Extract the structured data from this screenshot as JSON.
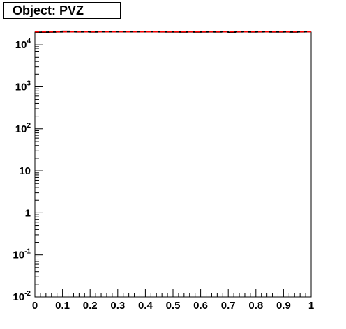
{
  "title": "Object: PVZ",
  "chart_data": {
    "type": "line",
    "title": "Object: PVZ",
    "xlabel": "",
    "ylabel": "",
    "xlim": [
      0,
      1
    ],
    "ylim": [
      0.01,
      20000
    ],
    "y_log_scale": true,
    "grid": false,
    "x_ticks": [
      {
        "v": 0,
        "label": "0"
      },
      {
        "v": 0.1,
        "label": "0.1"
      },
      {
        "v": 0.2,
        "label": "0.2"
      },
      {
        "v": 0.3,
        "label": "0.3"
      },
      {
        "v": 0.4,
        "label": "0.4"
      },
      {
        "v": 0.5,
        "label": "0.5"
      },
      {
        "v": 0.6,
        "label": "0.6"
      },
      {
        "v": 0.7,
        "label": "0.7"
      },
      {
        "v": 0.8,
        "label": "0.8"
      },
      {
        "v": 0.9,
        "label": "0.9"
      },
      {
        "v": 1,
        "label": "1"
      }
    ],
    "y_ticks": [
      {
        "v": 0.01,
        "base": "10",
        "exp": "-2"
      },
      {
        "v": 0.1,
        "base": "10",
        "exp": "-1"
      },
      {
        "v": 1,
        "base": "1",
        "exp": ""
      },
      {
        "v": 10,
        "base": "10",
        "exp": ""
      },
      {
        "v": 100,
        "base": "10",
        "exp": "2"
      },
      {
        "v": 1000,
        "base": "10",
        "exp": "3"
      },
      {
        "v": 10000,
        "base": "10",
        "exp": "4"
      }
    ],
    "series": [
      {
        "color": "#000000",
        "style": "solid",
        "x": [
          0,
          0.025,
          0.05,
          0.075,
          0.1,
          0.125,
          0.15,
          0.175,
          0.2,
          0.225,
          0.25,
          0.275,
          0.3,
          0.325,
          0.35,
          0.375,
          0.4,
          0.425,
          0.45,
          0.475,
          0.5,
          0.525,
          0.55,
          0.575,
          0.6,
          0.625,
          0.65,
          0.675,
          0.7,
          0.725,
          0.75,
          0.775,
          0.8,
          0.825,
          0.85,
          0.875,
          0.9,
          0.925,
          0.95,
          0.975
        ],
        "y": [
          19800,
          19900,
          20100,
          20300,
          20900,
          20500,
          20300,
          20400,
          20200,
          20600,
          20500,
          20400,
          20700,
          20600,
          20500,
          20700,
          20500,
          20400,
          20300,
          20200,
          20200,
          20100,
          20300,
          20100,
          20200,
          20300,
          20200,
          20400,
          19400,
          20300,
          20500,
          20200,
          20300,
          20400,
          20200,
          20200,
          20300,
          20100,
          20300,
          20400
        ]
      },
      {
        "color": "#ff0000",
        "style": "dashed",
        "x": [
          0,
          0.025,
          0.05,
          0.075,
          0.1,
          0.125,
          0.15,
          0.175,
          0.2,
          0.225,
          0.25,
          0.275,
          0.3,
          0.325,
          0.35,
          0.375,
          0.4,
          0.425,
          0.45,
          0.475,
          0.5,
          0.525,
          0.55,
          0.575,
          0.6,
          0.625,
          0.65,
          0.675,
          0.7,
          0.725,
          0.75,
          0.775,
          0.8,
          0.825,
          0.85,
          0.875,
          0.9,
          0.925,
          0.95,
          0.975
        ],
        "y": [
          20300,
          20300,
          20300,
          20300,
          20300,
          20300,
          20300,
          20300,
          20300,
          20300,
          20300,
          20300,
          20300,
          20300,
          20300,
          20300,
          20300,
          20300,
          20300,
          20300,
          20300,
          20300,
          20300,
          20300,
          20300,
          20300,
          20300,
          20300,
          20300,
          20300,
          20300,
          20300,
          20300,
          20300,
          20300,
          20300,
          20300,
          20300,
          20300,
          20300
        ]
      }
    ]
  }
}
